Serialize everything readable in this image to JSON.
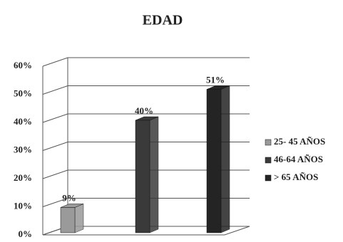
{
  "chart_data": {
    "type": "bar",
    "title": "EDAD",
    "categories": [
      "25- 45 AÑOS",
      "46-64 AÑOS",
      "> 65 AÑOS"
    ],
    "values": [
      9,
      40,
      51
    ],
    "value_labels": [
      "9%",
      "40%",
      "51%"
    ],
    "colors": [
      "#9a9a9a",
      "#3a3a3a",
      "#242424"
    ],
    "ylim": [
      0,
      60
    ],
    "yticks": [
      {
        "value": 0,
        "label": "0%"
      },
      {
        "value": 10,
        "label": "10%"
      },
      {
        "value": 20,
        "label": "20%"
      },
      {
        "value": 30,
        "label": "30%"
      },
      {
        "value": 40,
        "label": "40%"
      },
      {
        "value": 50,
        "label": "50%"
      },
      {
        "value": 60,
        "label": "60%"
      }
    ],
    "grid": true,
    "legend": "right"
  }
}
